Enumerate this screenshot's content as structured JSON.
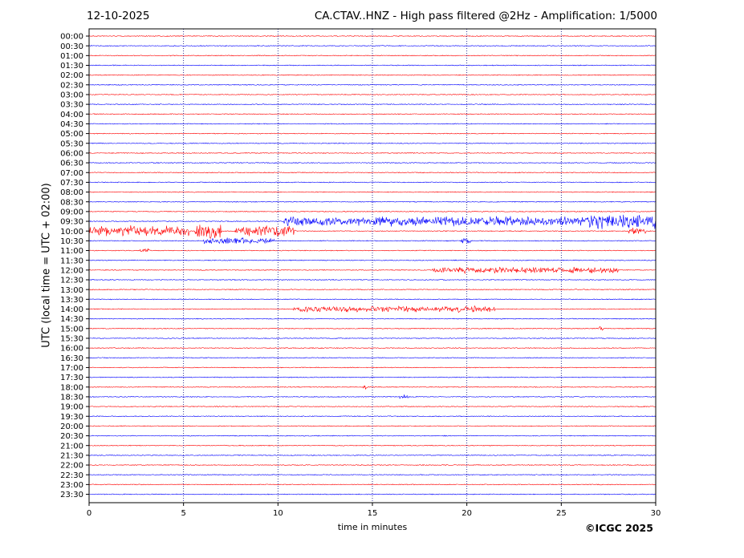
{
  "header": {
    "date": "12-10-2025",
    "title": "CA.CTAV..HNZ - High pass filtered @2Hz - Amplification: 1/5000"
  },
  "footer": {
    "copyright": "©ICGC 2025"
  },
  "chart_data": {
    "type": "line",
    "chart_kind": "seismogram helicorder",
    "xlabel": "time in minutes",
    "ylabel": "UTC (local time = UTC + 02:00)",
    "xlim": [
      0,
      30
    ],
    "x_ticks": [
      0,
      5,
      10,
      15,
      20,
      25,
      30
    ],
    "x_grid": [
      5,
      10,
      15,
      20,
      25
    ],
    "row_labels": [
      "00:00",
      "00:30",
      "01:00",
      "01:30",
      "02:00",
      "02:30",
      "03:00",
      "03:30",
      "04:00",
      "04:30",
      "05:00",
      "05:30",
      "06:00",
      "06:30",
      "07:00",
      "07:30",
      "08:00",
      "08:30",
      "09:00",
      "09:30",
      "10:00",
      "10:30",
      "11:00",
      "11:30",
      "12:00",
      "12:30",
      "13:00",
      "13:30",
      "14:00",
      "14:30",
      "15:00",
      "15:30",
      "16:00",
      "16:30",
      "17:00",
      "17:30",
      "18:00",
      "18:30",
      "19:00",
      "19:30",
      "20:00",
      "20:30",
      "21:00",
      "21:30",
      "22:00",
      "22:30",
      "23:00",
      "23:30"
    ],
    "trace_colors": [
      "#ff0000",
      "#0000ff"
    ],
    "bursts": [
      {
        "row": 19,
        "start": 10.3,
        "end": 30,
        "amp": 0.55
      },
      {
        "row": 19,
        "start": 26.5,
        "end": 30,
        "amp": 0.85
      },
      {
        "row": 20,
        "start": 0,
        "end": 5.3,
        "amp": 0.6
      },
      {
        "row": 20,
        "start": 5.6,
        "end": 7.0,
        "amp": 0.9
      },
      {
        "row": 20,
        "start": 7.7,
        "end": 10.9,
        "amp": 0.6
      },
      {
        "row": 20,
        "start": 28.5,
        "end": 29.5,
        "amp": 0.4
      },
      {
        "row": 21,
        "start": 6.0,
        "end": 9.8,
        "amp": 0.35
      },
      {
        "row": 21,
        "start": 19.7,
        "end": 20.2,
        "amp": 0.3
      },
      {
        "row": 22,
        "start": 2.7,
        "end": 3.2,
        "amp": 0.3
      },
      {
        "row": 24,
        "start": 18.2,
        "end": 28.0,
        "amp": 0.35
      },
      {
        "row": 28,
        "start": 10.8,
        "end": 21.5,
        "amp": 0.35
      },
      {
        "row": 30,
        "start": 27.0,
        "end": 27.2,
        "amp": 0.6
      },
      {
        "row": 36,
        "start": 14.5,
        "end": 14.7,
        "amp": 0.25
      },
      {
        "row": 37,
        "start": 16.4,
        "end": 16.9,
        "amp": 0.3
      }
    ]
  }
}
